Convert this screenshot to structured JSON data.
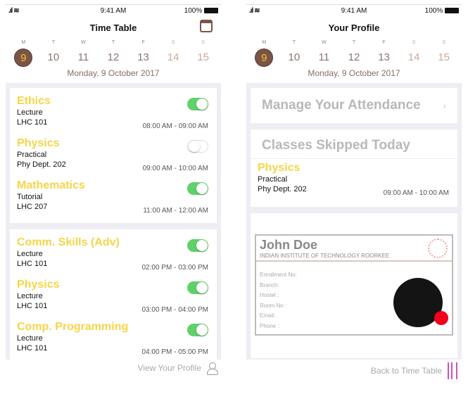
{
  "status": {
    "time": "9:41 AM",
    "battery": "100%"
  },
  "week": {
    "letters": [
      "M",
      "T",
      "W",
      "T",
      "F",
      "S",
      "S"
    ],
    "numbers": [
      "9",
      "10",
      "11",
      "12",
      "13",
      "14",
      "15"
    ],
    "selected": "9",
    "date": "Monday, 9 October 2017"
  },
  "left": {
    "title": "Time Table",
    "cards": [
      [
        {
          "name": "Ethics",
          "type": "Lecture",
          "room": "LHC 101",
          "time": "08:00 AM - 09:00 AM",
          "on": true
        },
        {
          "name": "Physics",
          "type": "Practical",
          "room": "Phy Dept. 202",
          "time": "09:00 AM - 10:00 AM",
          "on": false
        },
        {
          "name": "Mathematics",
          "type": "Tutorial",
          "room": "LHC 207",
          "time": "11:00 AM - 12:00 AM",
          "on": true
        }
      ],
      [
        {
          "name": "Comm. Skills (Adv)",
          "type": "Lecture",
          "room": "LHC 101",
          "time": "02:00 PM - 03:00 PM",
          "on": true
        },
        {
          "name": "Physics",
          "type": "Lecture",
          "room": "LHC 101",
          "time": "03:00 PM - 04:00 PM",
          "on": true
        },
        {
          "name": "Comp. Programming",
          "type": "Lecture",
          "room": "LHC 101",
          "time": "04:00 PM - 05:00 PM",
          "on": true
        }
      ]
    ],
    "footer": "View Your Profile"
  },
  "right": {
    "title": "Your Profile",
    "manage": "Manage Your Attendance",
    "skipped": "Classes Skipped Today",
    "skipped_entry": {
      "name": "Physics",
      "type": "Practical",
      "room": "Phy Dept. 202",
      "time": "09:00 AM - 10:00 AM"
    },
    "id": {
      "name": "John Doe",
      "institute": "INDIAN INSTITUTE OF TECHNOLOGY ROORKEE",
      "fields": [
        "Enrollment No:",
        "Branch:",
        "Hostel :",
        "Room No :",
        "Email:",
        "Phone :"
      ]
    },
    "footer": "Back to Time Table"
  },
  "colors": {
    "accent": "#7a5547",
    "course": "#f5d547",
    "toggle_on": "#5fd16a"
  }
}
